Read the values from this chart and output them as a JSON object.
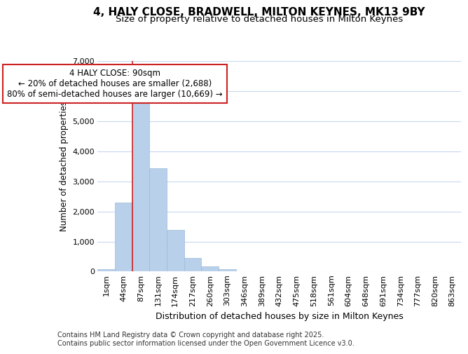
{
  "title_line1": "4, HALY CLOSE, BRADWELL, MILTON KEYNES, MK13 9BY",
  "title_line2": "Size of property relative to detached houses in Milton Keynes",
  "xlabel": "Distribution of detached houses by size in Milton Keynes",
  "ylabel": "Number of detached properties",
  "categories": [
    "1sqm",
    "44sqm",
    "87sqm",
    "131sqm",
    "174sqm",
    "217sqm",
    "260sqm",
    "303sqm",
    "346sqm",
    "389sqm",
    "432sqm",
    "475sqm",
    "518sqm",
    "561sqm",
    "604sqm",
    "648sqm",
    "691sqm",
    "734sqm",
    "777sqm",
    "820sqm",
    "863sqm"
  ],
  "values": [
    75,
    2300,
    5600,
    3450,
    1380,
    450,
    175,
    90,
    15,
    5,
    2,
    1,
    0,
    0,
    0,
    0,
    0,
    0,
    0,
    0,
    0
  ],
  "bar_color": "#b8d0ea",
  "bar_edge_color": "#9bbad8",
  "vline_index": 2,
  "vline_color": "#cc2222",
  "annotation_line1": "4 HALY CLOSE: 90sqm",
  "annotation_line2": "← 20% of detached houses are smaller (2,688)",
  "annotation_line3": "80% of semi-detached houses are larger (10,669) →",
  "annotation_box_edgecolor": "#cc2222",
  "ylim_max": 7000,
  "yticks": [
    0,
    1000,
    2000,
    3000,
    4000,
    5000,
    6000,
    7000
  ],
  "footer_line1": "Contains HM Land Registry data © Crown copyright and database right 2025.",
  "footer_line2": "Contains public sector information licensed under the Open Government Licence v3.0.",
  "bg_color": "#ffffff",
  "grid_color": "#c8d8f0",
  "title_fontsize": 11,
  "subtitle_fontsize": 9.5,
  "ylabel_fontsize": 8.5,
  "xlabel_fontsize": 9,
  "tick_fontsize": 8,
  "ann_fontsize": 8.5,
  "footer_fontsize": 7
}
